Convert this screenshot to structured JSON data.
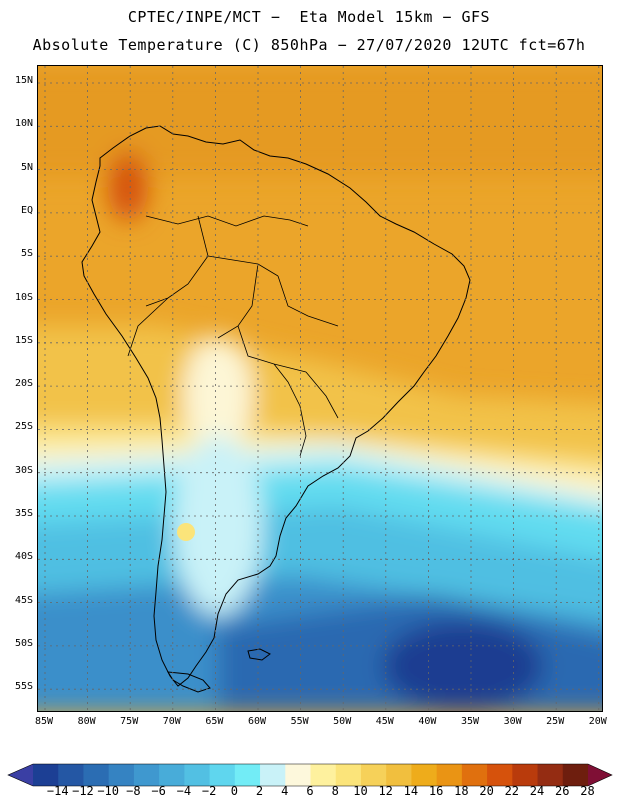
{
  "header": {
    "title_line1": "CPTEC/INPE/MCT −  Eta Model 15km − GFS",
    "title_line2": "Absolute Temperature (C) 850hPa − 27/07/2020 12UTC fct=67h"
  },
  "axes": {
    "lat_labels": [
      "15N",
      "10N",
      "5N",
      "EQ",
      "5S",
      "10S",
      "15S",
      "20S",
      "25S",
      "30S",
      "35S",
      "40S",
      "45S",
      "50S",
      "55S"
    ],
    "lon_labels": [
      "85W",
      "80W",
      "75W",
      "70W",
      "65W",
      "60W",
      "55W",
      "50W",
      "45W",
      "40W",
      "35W",
      "30W",
      "25W",
      "20W"
    ]
  },
  "colorbar": {
    "labels": [
      "−14",
      "−12",
      "−10",
      "−8",
      "−6",
      "−4",
      "−2",
      "0",
      "2",
      "4",
      "6",
      "8",
      "10",
      "12",
      "14",
      "16",
      "18",
      "20",
      "22",
      "24",
      "26",
      "28"
    ],
    "colors": [
      "#1c3f94",
      "#2457a4",
      "#2b6db3",
      "#3583c2",
      "#3f98cf",
      "#48acd9",
      "#52c0e3",
      "#5fd6ee",
      "#72ecf6",
      "#c9f2f8",
      "#fdf8dc",
      "#fef19e",
      "#fbe47a",
      "#f6d159",
      "#f1bf3e",
      "#eeac1b",
      "#ea9414",
      "#e0700e",
      "#d6520c",
      "#b93b0c",
      "#942c12",
      "#6e1e0e"
    ],
    "extend_low_color": "#3a3fa4",
    "extend_high_color": "#7f0f35"
  },
  "map": {
    "land_color": "#eba52a",
    "ocean_north_color": "#efb231",
    "ocean_south_color": "#2a60ab",
    "deep_cold_color": "#1f3c91"
  }
}
